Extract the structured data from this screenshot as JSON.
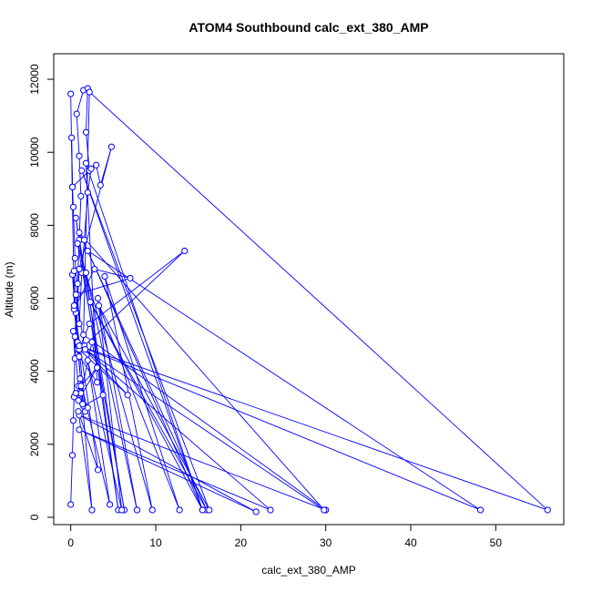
{
  "chart_data": {
    "type": "line",
    "title": "ATOM4 Southbound calc_ext_380_AMP",
    "xlabel": "calc_ext_380_AMP",
    "ylabel": "Altitude (m)",
    "xlim": [
      -2,
      58
    ],
    "ylim": [
      -200,
      12700
    ],
    "xticks": [
      0,
      10,
      20,
      30,
      40,
      50
    ],
    "yticks": [
      0,
      2000,
      4000,
      6000,
      8000,
      10000,
      12000
    ],
    "xtick_labels": [
      "0",
      "10",
      "20",
      "30",
      "40",
      "50"
    ],
    "ytick_labels": [
      "0",
      "2000",
      "4000",
      "6000",
      "8000",
      "10000",
      "12000"
    ],
    "grid": false,
    "legend": "none",
    "markers": "open circles joined by lines",
    "color": "#0000ff",
    "series": [
      {
        "x": [
          0.0,
          0.2,
          0.3,
          0.4,
          0.5,
          0.8,
          1.0,
          1.2,
          1.0,
          0.7,
          1.5,
          2.0,
          1.8,
          2.2,
          0.2,
          0.1,
          0.2,
          0.3,
          0.5,
          0.8,
          1.0,
          1.3,
          1.6,
          2.0,
          2.4,
          3.0,
          3.5,
          4.8,
          1.0,
          0.5,
          0.3,
          0.9,
          1.2,
          2.5,
          3.8,
          1.5,
          0.8,
          0.2,
          0.4,
          0.6,
          1.7,
          2.0,
          0.6,
          1.2,
          3.1,
          0.9,
          1.4,
          0.8,
          6.7,
          1.0,
          2.2,
          13.4,
          1.6,
          0.6,
          7.0,
          2.8,
          0.4,
          1.0,
          3.1,
          1.8,
          15.5,
          2.0,
          48.2,
          1.0,
          56.1,
          2.2,
          1.5,
          30.0,
          1.0,
          21.8,
          1.0,
          23.5,
          1.7,
          29.8,
          1.0,
          16.0,
          2.3,
          15.5,
          1.3,
          16.3,
          3.3,
          12.8,
          4.0,
          9.6,
          0.8,
          6.3,
          0.6,
          5.6,
          1.8,
          7.8,
          3.2,
          6.0,
          2.0,
          4.6,
          1.1,
          2.5,
          0.9,
          3.2,
          0.4,
          0.0
        ],
        "y": [
          350,
          1700,
          2650,
          3300,
          4950,
          6400,
          7600,
          8800,
          9900,
          11050,
          11700,
          11750,
          10550,
          9500,
          9050,
          10400,
          9050,
          8500,
          7100,
          6100,
          5300,
          6700,
          7600,
          8900,
          9550,
          9650,
          9100,
          10150,
          6800,
          4350,
          5100,
          3600,
          3400,
          4800,
          3350,
          3050,
          4600,
          6650,
          6750,
          5600,
          2900,
          3000,
          3400,
          3600,
          4100,
          3200,
          3100,
          4800,
          3350,
          4600,
          5300,
          7300,
          4700,
          6100,
          6550,
          6800,
          5700,
          4400,
          3700,
          9700,
          200,
          7300,
          200,
          4700,
          200,
          11650,
          5000,
          200,
          2800,
          150,
          2400,
          200,
          4600,
          200,
          7800,
          200,
          5900,
          200,
          9500,
          200,
          5800,
          200,
          6600,
          200,
          7500,
          200,
          8200,
          200,
          6700,
          200,
          6000,
          200,
          4300,
          350,
          3800,
          200,
          2900,
          1300,
          5800,
          11600
        ]
      }
    ]
  }
}
